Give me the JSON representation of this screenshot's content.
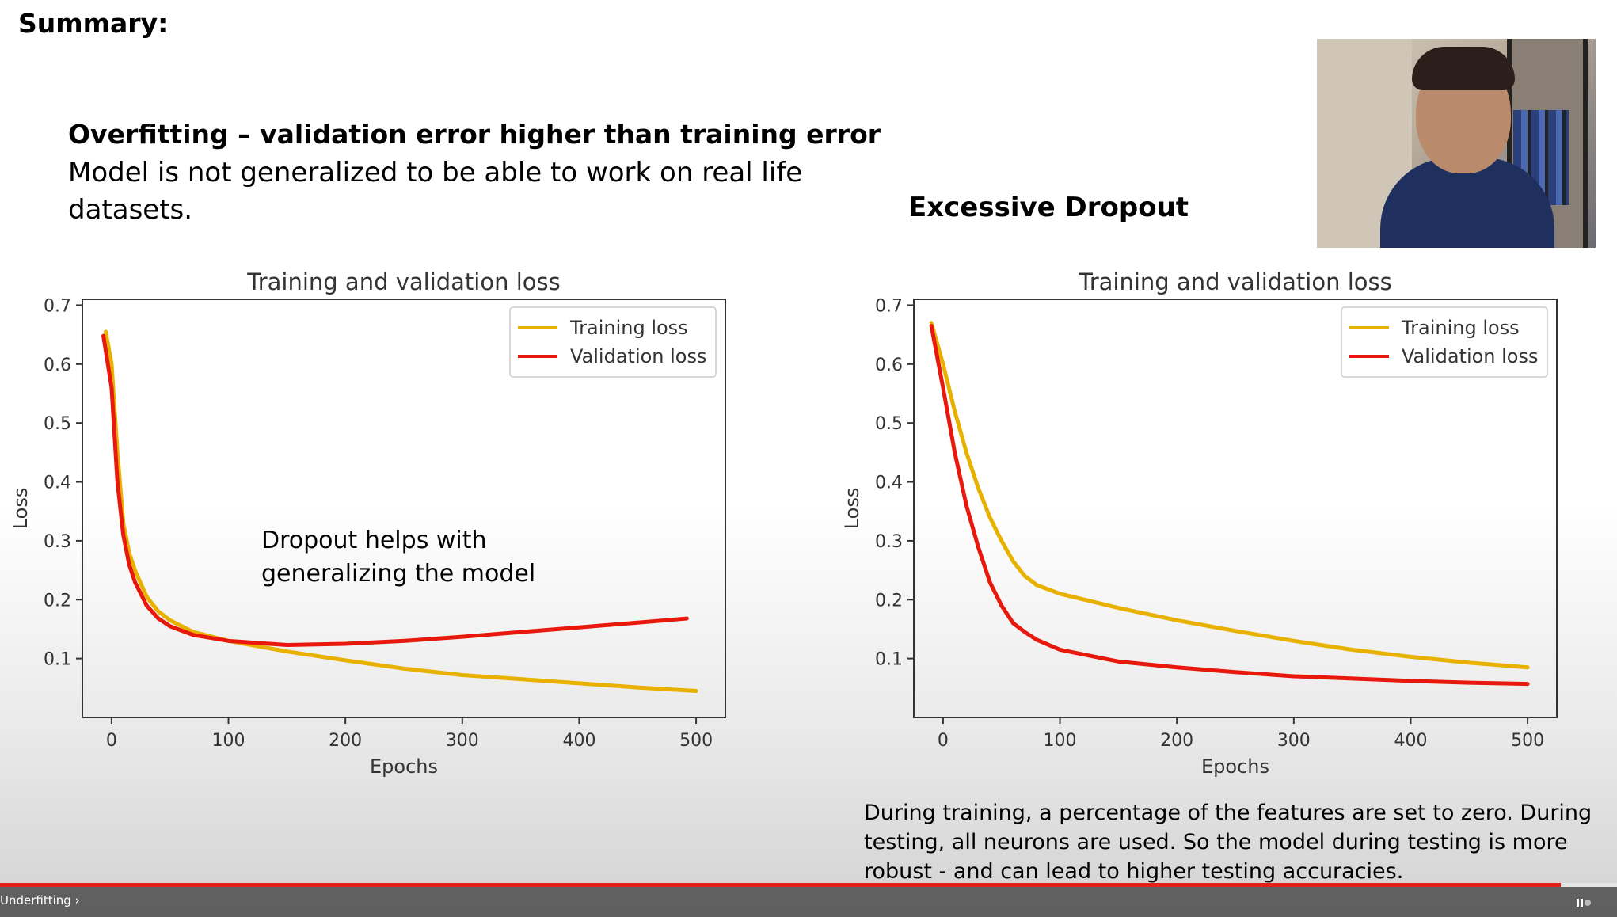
{
  "slide": {
    "summary": "Summary:",
    "overfitting_title": "Overfitting – validation error higher than training error",
    "overfitting_desc": "Model is not generalized to be able to work on real life datasets.",
    "dropout_title": "Excessive Dropout",
    "annotation": "Dropout helps with generalizing the model",
    "explanation": "During training, a percentage of the features are set to zero. During testing, all neurons are used. So the model during testing is more robust - and can lead to higher testing accuracies."
  },
  "player": {
    "chapter": "Underfitting",
    "progress": 0.965
  },
  "colors": {
    "training": "#e8b100",
    "validation": "#e8180c"
  },
  "chart_data": [
    {
      "type": "line",
      "title": "Training and validation loss",
      "xlabel": "Epochs",
      "ylabel": "Loss",
      "xlim": [
        -25,
        525
      ],
      "ylim": [
        0.0,
        0.71
      ],
      "xticks": [
        0,
        100,
        200,
        300,
        400,
        500
      ],
      "yticks": [
        0.1,
        0.2,
        0.3,
        0.4,
        0.5,
        0.6,
        0.7
      ],
      "legend_position": "top-right",
      "series": [
        {
          "name": "Training loss",
          "color": "#e8b100",
          "x": [
            -5,
            0,
            5,
            10,
            15,
            20,
            30,
            40,
            50,
            70,
            100,
            150,
            200,
            250,
            300,
            350,
            400,
            450,
            500
          ],
          "y": [
            0.655,
            0.6,
            0.45,
            0.33,
            0.28,
            0.25,
            0.205,
            0.18,
            0.165,
            0.145,
            0.13,
            0.112,
            0.097,
            0.083,
            0.072,
            0.065,
            0.058,
            0.051,
            0.045
          ]
        },
        {
          "name": "Validation loss",
          "color": "#e8180c",
          "x": [
            -7,
            0,
            5,
            10,
            15,
            20,
            30,
            40,
            50,
            70,
            100,
            150,
            200,
            250,
            300,
            350,
            400,
            450,
            492
          ],
          "y": [
            0.648,
            0.56,
            0.4,
            0.31,
            0.26,
            0.23,
            0.19,
            0.168,
            0.155,
            0.14,
            0.13,
            0.123,
            0.125,
            0.13,
            0.137,
            0.145,
            0.153,
            0.161,
            0.168
          ]
        }
      ]
    },
    {
      "type": "line",
      "title": "Training and validation loss",
      "xlabel": "Epochs",
      "ylabel": "Loss",
      "xlim": [
        -25,
        525
      ],
      "ylim": [
        0.0,
        0.71
      ],
      "xticks": [
        0,
        100,
        200,
        300,
        400,
        500
      ],
      "yticks": [
        0.1,
        0.2,
        0.3,
        0.4,
        0.5,
        0.6,
        0.7
      ],
      "legend_position": "top-right",
      "series": [
        {
          "name": "Training loss",
          "color": "#e8b100",
          "x": [
            -10,
            0,
            10,
            20,
            30,
            40,
            50,
            60,
            70,
            80,
            100,
            150,
            200,
            250,
            300,
            350,
            400,
            450,
            500
          ],
          "y": [
            0.67,
            0.6,
            0.52,
            0.45,
            0.39,
            0.34,
            0.3,
            0.265,
            0.24,
            0.225,
            0.21,
            0.186,
            0.165,
            0.147,
            0.13,
            0.115,
            0.103,
            0.093,
            0.085
          ]
        },
        {
          "name": "Validation loss",
          "color": "#e8180c",
          "x": [
            -10,
            0,
            10,
            20,
            30,
            40,
            50,
            60,
            70,
            80,
            100,
            150,
            200,
            250,
            300,
            350,
            400,
            450,
            500
          ],
          "y": [
            0.665,
            0.56,
            0.45,
            0.36,
            0.29,
            0.23,
            0.19,
            0.16,
            0.145,
            0.132,
            0.115,
            0.095,
            0.085,
            0.077,
            0.07,
            0.066,
            0.062,
            0.059,
            0.057
          ]
        }
      ]
    }
  ]
}
